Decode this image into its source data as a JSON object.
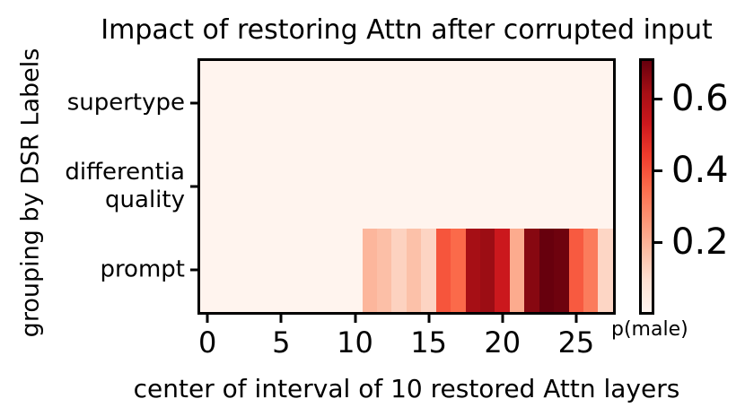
{
  "title": "Impact of restoring Attn after corrupted input",
  "x_axis": {
    "label": "center of interval of 10 restored Attn layers",
    "tick_values": [
      0,
      5,
      10,
      15,
      20,
      25
    ]
  },
  "y_axis": {
    "label": "grouping by DSR Labels",
    "categories": [
      "supertype",
      "differentia\nquality",
      "prompt"
    ]
  },
  "colorbar": {
    "label": "p(male)",
    "tick_values": [
      0.2,
      0.4,
      0.6
    ],
    "vmin": 0.005,
    "vmax": 0.705
  },
  "chart_data": {
    "type": "heatmap",
    "title": "Impact of restoring Attn after corrupted input",
    "xlabel": "center of interval of 10 restored Attn layers",
    "ylabel": "grouping by DSR Labels",
    "colorbar_label": "p(male)",
    "rows": [
      "supertype",
      "differentia quality",
      "prompt"
    ],
    "x": [
      0,
      1,
      2,
      3,
      4,
      5,
      6,
      7,
      8,
      9,
      10,
      11,
      12,
      13,
      14,
      15,
      16,
      17,
      18,
      19,
      20,
      21,
      22,
      23,
      24,
      25,
      26,
      27
    ],
    "values": [
      [
        0.01,
        0.01,
        0.01,
        0.01,
        0.01,
        0.01,
        0.01,
        0.01,
        0.01,
        0.01,
        0.01,
        0.01,
        0.01,
        0.01,
        0.01,
        0.01,
        0.01,
        0.01,
        0.01,
        0.01,
        0.01,
        0.01,
        0.01,
        0.01,
        0.01,
        0.01,
        0.01,
        0.01
      ],
      [
        0.01,
        0.01,
        0.01,
        0.01,
        0.01,
        0.01,
        0.01,
        0.01,
        0.01,
        0.01,
        0.01,
        0.01,
        0.01,
        0.01,
        0.01,
        0.01,
        0.01,
        0.01,
        0.01,
        0.01,
        0.01,
        0.01,
        0.01,
        0.01,
        0.01,
        0.01,
        0.01,
        0.01
      ],
      [
        0.01,
        0.01,
        0.01,
        0.01,
        0.01,
        0.01,
        0.01,
        0.01,
        0.01,
        0.01,
        0.01,
        0.19,
        0.17,
        0.125,
        0.165,
        0.12,
        0.395,
        0.355,
        0.615,
        0.63,
        0.53,
        0.215,
        0.66,
        0.705,
        0.695,
        0.385,
        0.315,
        0.115
      ]
    ],
    "vmin": 0.005,
    "vmax": 0.705,
    "colormap": "Reds",
    "colormap_anchors": [
      [
        0.0,
        "#fff5f0"
      ],
      [
        0.125,
        "#fee0d2"
      ],
      [
        0.25,
        "#fcbba1"
      ],
      [
        0.375,
        "#fc9272"
      ],
      [
        0.5,
        "#fb6a4a"
      ],
      [
        0.625,
        "#ef3b2c"
      ],
      [
        0.75,
        "#cb181d"
      ],
      [
        0.875,
        "#a50f15"
      ],
      [
        1.0,
        "#67000d"
      ]
    ],
    "axis_color": "#000000",
    "background_color": "#ffffff",
    "grid": false,
    "legend_position": "colorbar-right"
  }
}
